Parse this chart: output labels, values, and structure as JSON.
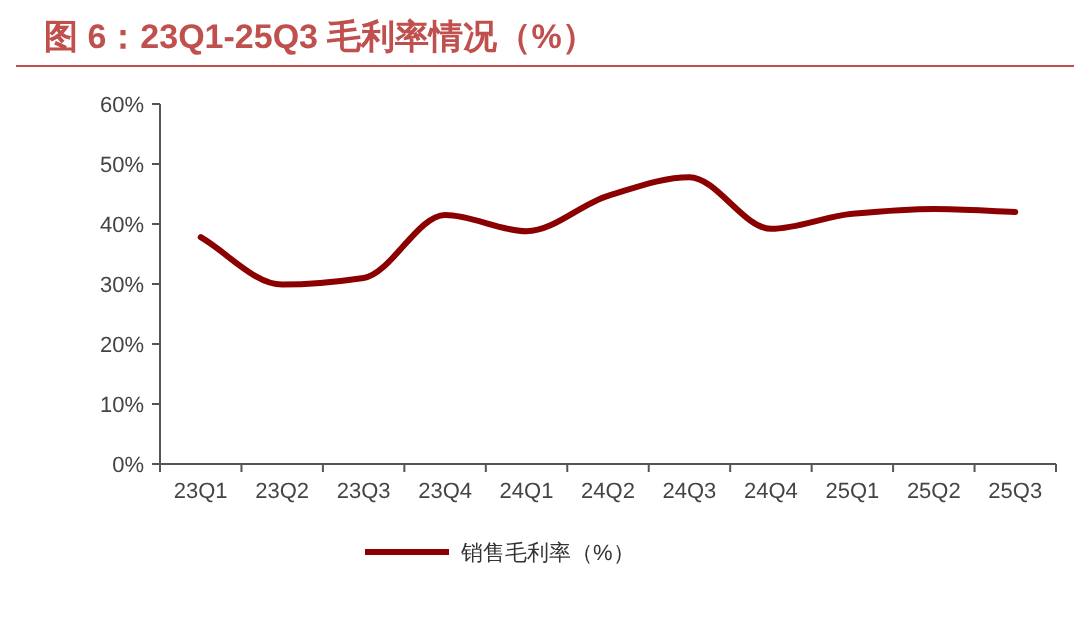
{
  "chart_data": {
    "type": "line",
    "title": "图 6：23Q1-25Q3 毛利率情况（%）",
    "categories": [
      "23Q1",
      "23Q2",
      "23Q3",
      "23Q4",
      "24Q1",
      "24Q2",
      "24Q3",
      "24Q4",
      "25Q1",
      "25Q2",
      "25Q3"
    ],
    "series": [
      {
        "name": "销售毛利率（%）",
        "color": "#8b0000",
        "values": [
          37.8,
          29.9,
          31.0,
          41.5,
          38.8,
          44.7,
          47.8,
          39.2,
          41.7,
          42.5,
          42.0
        ]
      }
    ],
    "ylim": [
      0,
      60
    ],
    "yticks": [
      {
        "value": 0,
        "label": "0%"
      },
      {
        "value": 10,
        "label": "10%"
      },
      {
        "value": 20,
        "label": "20%"
      },
      {
        "value": 30,
        "label": "30%"
      },
      {
        "value": 40,
        "label": "40%"
      },
      {
        "value": 50,
        "label": "50%"
      },
      {
        "value": 60,
        "label": "60%"
      }
    ],
    "legend": "bottom"
  }
}
